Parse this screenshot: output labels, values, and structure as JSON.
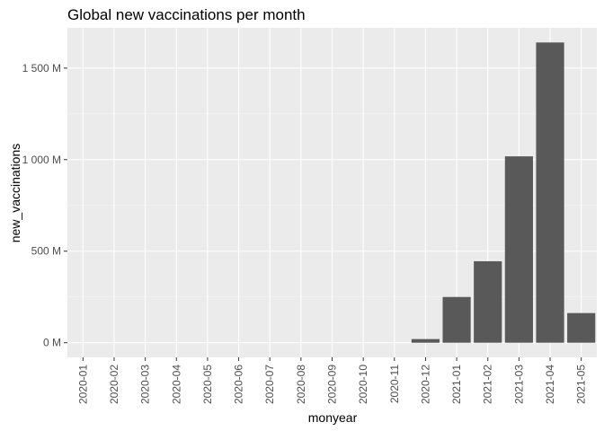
{
  "chart_data": {
    "type": "bar",
    "title": "Global new vaccinations per month",
    "xlabel": "monyear",
    "ylabel": "new_vaccinations",
    "categories": [
      "2020-01",
      "2020-02",
      "2020-03",
      "2020-04",
      "2020-05",
      "2020-06",
      "2020-07",
      "2020-08",
      "2020-09",
      "2020-10",
      "2020-11",
      "2020-12",
      "2021-01",
      "2021-02",
      "2021-03",
      "2021-04",
      "2021-05"
    ],
    "values": [
      0,
      0,
      0,
      0,
      0,
      0,
      0,
      0,
      0,
      0,
      0,
      20000000,
      250000000,
      445000000,
      1018000000,
      1640000000,
      162000000
    ],
    "ylim": [
      -80000000,
      1720000000
    ],
    "yticks": [
      0,
      500000000,
      1000000000,
      1500000000
    ],
    "ytick_labels": [
      "0 M",
      "500 M",
      "1 000 M",
      "1 500 M"
    ],
    "grid": true,
    "legend": "none",
    "colors": {
      "bar": "#595959",
      "panel": "#ebebeb",
      "grid_major": "#ffffff",
      "grid_minor": "#f5f5f5",
      "tick_text": "#4d4d4d"
    }
  }
}
